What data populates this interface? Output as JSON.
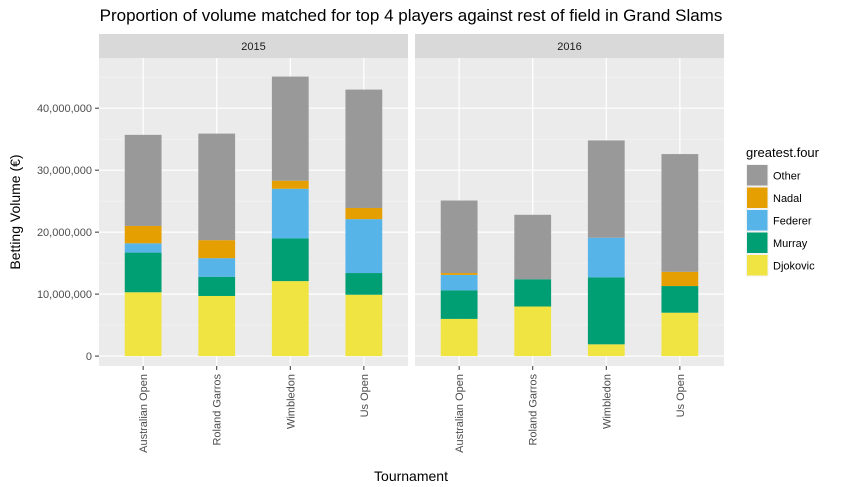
{
  "chart_data": {
    "type": "bar",
    "stacked": true,
    "title": "Proportion of volume matched for top 4 players against rest of field in Grand Slams",
    "xlabel": "Tournament",
    "ylabel": "Betting Volume (€)",
    "ylim": [
      -1600000,
      48100000
    ],
    "yticks": [
      0,
      10000000,
      20000000,
      30000000,
      40000000
    ],
    "ytick_labels": [
      "0",
      "10,000,000",
      "20,000,000",
      "30,000,000",
      "40,000,000"
    ],
    "grid": true,
    "legend_position": "right",
    "legend_title": "greatest.four",
    "categories": [
      "Australian Open",
      "Roland Garros",
      "Wimbledon",
      "Us Open"
    ],
    "stack_order": [
      "Djokovic",
      "Murray",
      "Federer",
      "Nadal",
      "Other"
    ],
    "legend_order": [
      "Other",
      "Nadal",
      "Federer",
      "Murray",
      "Djokovic"
    ],
    "colors": {
      "Djokovic": "#F0E442",
      "Murray": "#009E73",
      "Federer": "#56B4E9",
      "Nadal": "#E69F00",
      "Other": "#999999"
    },
    "panels": [
      {
        "label": "2015",
        "series": [
          {
            "name": "Djokovic",
            "values": [
              10300000,
              9700000,
              12100000,
              9900000
            ]
          },
          {
            "name": "Murray",
            "values": [
              6400000,
              3100000,
              6900000,
              3500000
            ]
          },
          {
            "name": "Federer",
            "values": [
              1500000,
              3000000,
              8000000,
              8700000
            ]
          },
          {
            "name": "Nadal",
            "values": [
              2800000,
              2900000,
              1300000,
              1800000
            ]
          },
          {
            "name": "Other",
            "values": [
              14700000,
              17200000,
              16800000,
              19100000
            ]
          }
        ]
      },
      {
        "label": "2016",
        "series": [
          {
            "name": "Djokovic",
            "values": [
              6000000,
              8000000,
              1900000,
              7000000
            ]
          },
          {
            "name": "Murray",
            "values": [
              4600000,
              4400000,
              10800000,
              4300000
            ]
          },
          {
            "name": "Federer",
            "values": [
              2500000,
              0,
              6400000,
              0
            ]
          },
          {
            "name": "Nadal",
            "values": [
              300000,
              0,
              0,
              2300000
            ]
          },
          {
            "name": "Other",
            "values": [
              11700000,
              10400000,
              15700000,
              19000000
            ]
          }
        ]
      }
    ]
  }
}
